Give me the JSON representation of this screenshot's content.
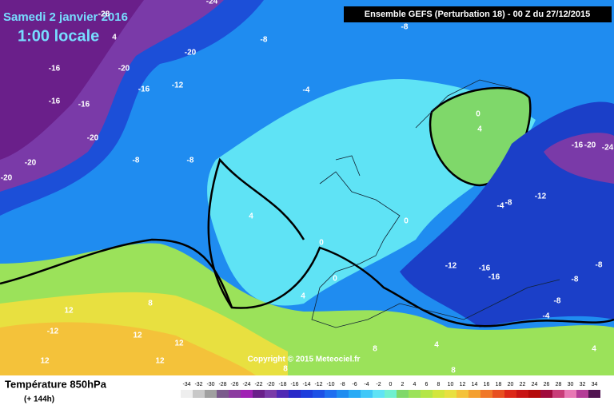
{
  "header": {
    "date": "Samedi 2 janvier 2016",
    "time": "1:00 locale",
    "run": "Ensemble GEFS  (Perturbation 18)  - 00 Z du 27/12/2015"
  },
  "copyright": "Copyright © 2015 Meteociel.fr",
  "footer": {
    "title": "Température 850hPa",
    "lead": "(+ 144h)"
  },
  "scale": [
    -34,
    -32,
    -30,
    -28,
    -26,
    -24,
    -22,
    -20,
    -18,
    -16,
    -14,
    -12,
    -10,
    -8,
    -6,
    -4,
    -2,
    0,
    2,
    4,
    6,
    8,
    10,
    12,
    14,
    16,
    18,
    20,
    22,
    24,
    26,
    28,
    30,
    32,
    34
  ],
  "contour_labels": [
    "-24",
    "-28",
    "4",
    "-8",
    "-20",
    "-16",
    "-20",
    "-16",
    "-12",
    "-16",
    "-16",
    "-20",
    "-8",
    "-8",
    "-20",
    "-20",
    "-4",
    "-8",
    "0",
    "4",
    "-16",
    "-20",
    "-24",
    "-12",
    "-4",
    "-8",
    "0",
    "4",
    "0",
    "0",
    "4",
    "-12",
    "-16",
    "-16",
    "-8",
    "-8",
    "-8",
    "-4",
    "8",
    "12",
    "-12",
    "12",
    "12",
    "12",
    "12",
    "8",
    "4",
    "4",
    "8",
    "8"
  ]
}
